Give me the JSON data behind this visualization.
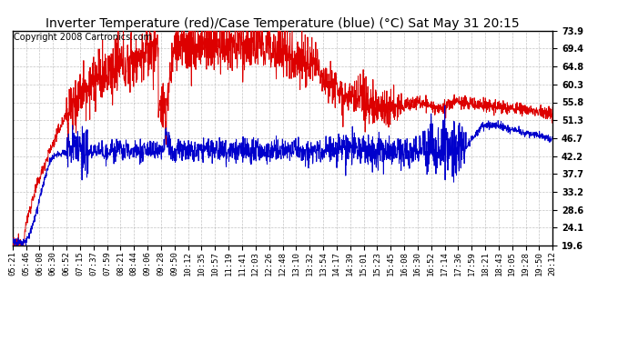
{
  "title": "Inverter Temperature (red)/Case Temperature (blue) (°C) Sat May 31 20:15",
  "copyright": "Copyright 2008 Cartronics.com",
  "background_color": "#ffffff",
  "plot_bg_color": "#ffffff",
  "grid_color": "#aaaaaa",
  "yticks": [
    19.6,
    24.1,
    28.6,
    33.2,
    37.7,
    42.2,
    46.7,
    51.3,
    55.8,
    60.3,
    64.8,
    69.4,
    73.9
  ],
  "ylim": [
    19.6,
    73.9
  ],
  "xtick_labels": [
    "05:21",
    "05:46",
    "06:08",
    "06:30",
    "06:52",
    "07:15",
    "07:37",
    "07:59",
    "08:21",
    "08:44",
    "09:06",
    "09:28",
    "09:50",
    "10:12",
    "10:35",
    "10:57",
    "11:19",
    "11:41",
    "12:03",
    "12:26",
    "12:48",
    "13:10",
    "13:32",
    "13:54",
    "14:17",
    "14:39",
    "15:01",
    "15:23",
    "15:45",
    "16:08",
    "16:30",
    "16:52",
    "17:14",
    "17:36",
    "17:59",
    "18:21",
    "18:43",
    "19:05",
    "19:28",
    "19:50",
    "20:12"
  ],
  "red_color": "#dd0000",
  "blue_color": "#0000cc",
  "title_fontsize": 10,
  "copyright_fontsize": 7,
  "tick_fontsize": 6.5
}
